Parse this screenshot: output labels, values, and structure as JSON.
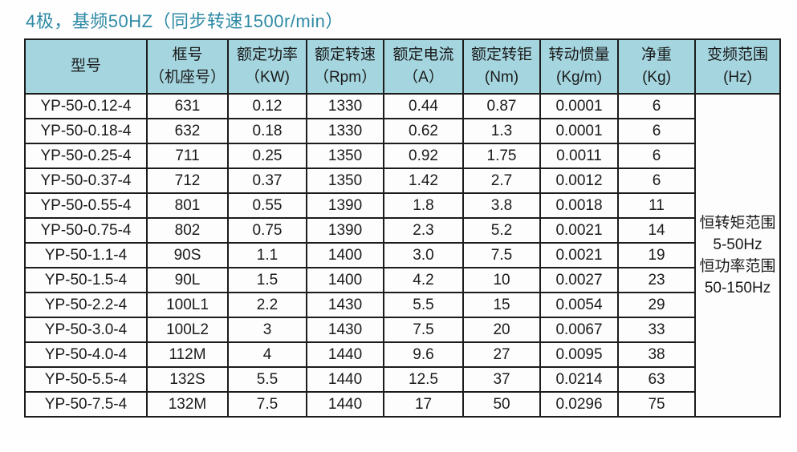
{
  "page": {
    "title": "4极，基频50HZ（同步转速1500r/min）"
  },
  "colors": {
    "title_text": "#2e8aa5",
    "header_bg": "#a5d6e0",
    "border": "#1c1c1c",
    "cell_bg": "#fdfdfd"
  },
  "table": {
    "headers": [
      {
        "line1": "型号",
        "line2": ""
      },
      {
        "line1": "框号",
        "line2": "（机座号）"
      },
      {
        "line1": "额定功率",
        "line2": "（KW)"
      },
      {
        "line1": "额定转速",
        "line2": "（Rpm）"
      },
      {
        "line1": "额定电流",
        "line2": "（A）"
      },
      {
        "line1": "额定转钜",
        "line2": "(Nm)"
      },
      {
        "line1": "转动惯量",
        "line2": "(Kg/m)"
      },
      {
        "line1": "净重",
        "line2": "(Kg)"
      },
      {
        "line1": "变频范围",
        "line2": "(Hz)"
      }
    ],
    "rows": [
      [
        "YP-50-0.12-4",
        "631",
        "0.12",
        "1330",
        "0.44",
        "0.87",
        "0.0001",
        "6"
      ],
      [
        "YP-50-0.18-4",
        "632",
        "0.18",
        "1330",
        "0.62",
        "1.3",
        "0.0001",
        "6"
      ],
      [
        "YP-50-0.25-4",
        "711",
        "0.25",
        "1350",
        "0.92",
        "1.75",
        "0.0011",
        "6"
      ],
      [
        "YP-50-0.37-4",
        "712",
        "0.37",
        "1350",
        "1.42",
        "2.7",
        "0.0012",
        "6"
      ],
      [
        "YP-50-0.55-4",
        "801",
        "0.55",
        "1390",
        "1.8",
        "3.8",
        "0.0018",
        "11"
      ],
      [
        "YP-50-0.75-4",
        "802",
        "0.75",
        "1390",
        "2.3",
        "5.2",
        "0.0021",
        "14"
      ],
      [
        "YP-50-1.1-4",
        "90S",
        "1.1",
        "1400",
        "3.0",
        "7.5",
        "0.0021",
        "19"
      ],
      [
        "YP-50-1.5-4",
        "90L",
        "1.5",
        "1400",
        "4.2",
        "10",
        "0.0027",
        "23"
      ],
      [
        "YP-50-2.2-4",
        "100L1",
        "2.2",
        "1430",
        "5.5",
        "15",
        "0.0054",
        "29"
      ],
      [
        "YP-50-3.0-4",
        "100L2",
        "3",
        "1430",
        "7.5",
        "20",
        "0.0067",
        "33"
      ],
      [
        "YP-50-4.0-4",
        "112M",
        "4",
        "1440",
        "9.6",
        "27",
        "0.0095",
        "38"
      ],
      [
        "YP-50-5.5-4",
        "132S",
        "5.5",
        "1440",
        "12.5",
        "37",
        "0.0214",
        "63"
      ],
      [
        "YP-50-7.5-4",
        "132M",
        "7.5",
        "1440",
        "17",
        "50",
        "0.0296",
        "75"
      ]
    ],
    "freq_range_cell": {
      "lines": [
        "恒转矩范围",
        "5-50Hz",
        "恒功率范围",
        "50-150Hz"
      ]
    }
  }
}
